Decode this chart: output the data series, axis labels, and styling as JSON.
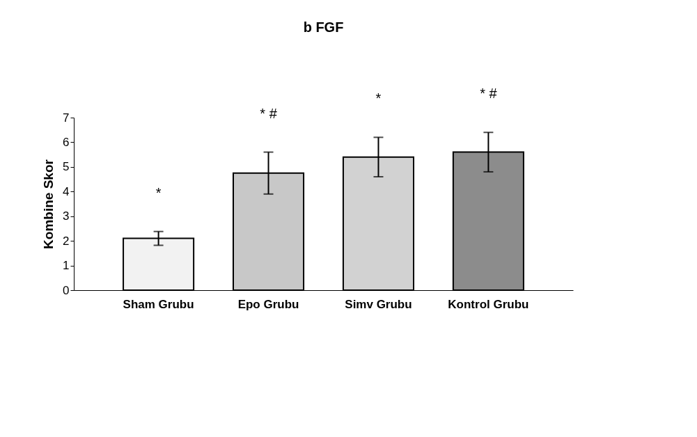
{
  "chart_data": {
    "type": "bar",
    "title": "b FGF",
    "ylabel": "Kombine Skor",
    "categories": [
      "Sham Grubu",
      "Epo Grubu",
      "Simv Grubu",
      "Kontrol Grubu"
    ],
    "values": [
      2.1,
      4.75,
      5.4,
      5.6
    ],
    "errors": [
      0.28,
      0.85,
      0.8,
      0.8
    ],
    "colors": [
      "#f2f2f2",
      "#c8c8c8",
      "#d2d2d2",
      "#8c8c8c"
    ],
    "ylim": [
      0,
      7
    ],
    "yticks": [
      0,
      1,
      2,
      3,
      4,
      5,
      6,
      7
    ],
    "grid": false,
    "annotations": [
      "*",
      "* #",
      "*",
      "* #"
    ]
  }
}
